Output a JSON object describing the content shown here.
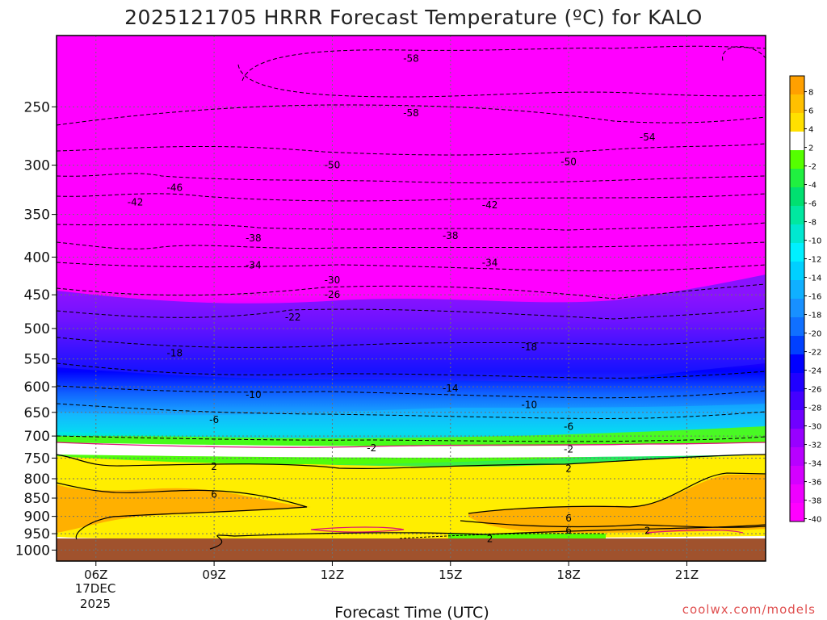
{
  "chart_data": {
    "type": "heatmap",
    "title": "2025121705 HRRR Forecast Temperature (ºC) for KALO",
    "xlabel": "Forecast Time (UTC)",
    "ylabel": "",
    "x_ticks": [
      "06Z",
      "09Z",
      "12Z",
      "15Z",
      "18Z",
      "21Z"
    ],
    "x_date_label": [
      "17DEC",
      "2025"
    ],
    "y_ticks": [
      250,
      300,
      350,
      400,
      450,
      500,
      550,
      600,
      650,
      700,
      750,
      800,
      850,
      900,
      950,
      1000
    ],
    "colorbar_labels": [
      "8",
      "6",
      "4",
      "2",
      "-2",
      "-4",
      "-6",
      "-8",
      "-10",
      "-12",
      "-14",
      "-16",
      "-18",
      "-20",
      "-22",
      "-24",
      "-26",
      "-28",
      "-30",
      "-32",
      "-34",
      "-36",
      "-38",
      "-40"
    ],
    "contour_labels": [
      {
        "text": "-58",
        "time": "14Z",
        "pressure": 215
      },
      {
        "text": "-58",
        "time": "14Z",
        "pressure": 255
      },
      {
        "text": "-54",
        "time": "20Z",
        "pressure": 275
      },
      {
        "text": "-50",
        "time": "12Z",
        "pressure": 300
      },
      {
        "text": "-50",
        "time": "18Z",
        "pressure": 297
      },
      {
        "text": "-46",
        "time": "08Z",
        "pressure": 322
      },
      {
        "text": "-42",
        "time": "07Z",
        "pressure": 337
      },
      {
        "text": "-42",
        "time": "16Z",
        "pressure": 340
      },
      {
        "text": "-38",
        "time": "10Z",
        "pressure": 377
      },
      {
        "text": "-38",
        "time": "15Z",
        "pressure": 374
      },
      {
        "text": "-34",
        "time": "10Z",
        "pressure": 410
      },
      {
        "text": "-34",
        "time": "16Z",
        "pressure": 407
      },
      {
        "text": "-30",
        "time": "12Z",
        "pressure": 430
      },
      {
        "text": "-26",
        "time": "12Z",
        "pressure": 450
      },
      {
        "text": "-22",
        "time": "11Z",
        "pressure": 483
      },
      {
        "text": "-18",
        "time": "08Z",
        "pressure": 540
      },
      {
        "text": "-18",
        "time": "17Z",
        "pressure": 530
      },
      {
        "text": "-14",
        "time": "15Z",
        "pressure": 603
      },
      {
        "text": "-10",
        "time": "10Z",
        "pressure": 615
      },
      {
        "text": "-10",
        "time": "17Z",
        "pressure": 635
      },
      {
        "text": "-6",
        "time": "09Z",
        "pressure": 665
      },
      {
        "text": "-6",
        "time": "18Z",
        "pressure": 680
      },
      {
        "text": "-2",
        "time": "13Z",
        "pressure": 727
      },
      {
        "text": "-2",
        "time": "18Z",
        "pressure": 730
      },
      {
        "text": "2",
        "time": "09Z",
        "pressure": 770
      },
      {
        "text": "2",
        "time": "18Z",
        "pressure": 775
      },
      {
        "text": "6",
        "time": "09Z",
        "pressure": 840
      },
      {
        "text": "6",
        "time": "18Z",
        "pressure": 905
      },
      {
        "text": "6",
        "time": "18Z",
        "pressure": 940
      },
      {
        "text": "2",
        "time": "20Z",
        "pressure": 942
      },
      {
        "text": "2",
        "time": "16Z",
        "pressure": 965
      }
    ],
    "credit": "coolwx.com/models",
    "grid": true
  },
  "colors": {
    "magenta": "#ff00ff",
    "purple": "#a000ff",
    "blue": "#0000ff",
    "sky": "#1e90ff",
    "cyan": "#00e0ff",
    "green": "#00e070",
    "lime": "#55ff00",
    "white": "#ffffff",
    "yellow": "#ffee00",
    "orange": "#ffaa00",
    "ground": "#a0522d"
  }
}
